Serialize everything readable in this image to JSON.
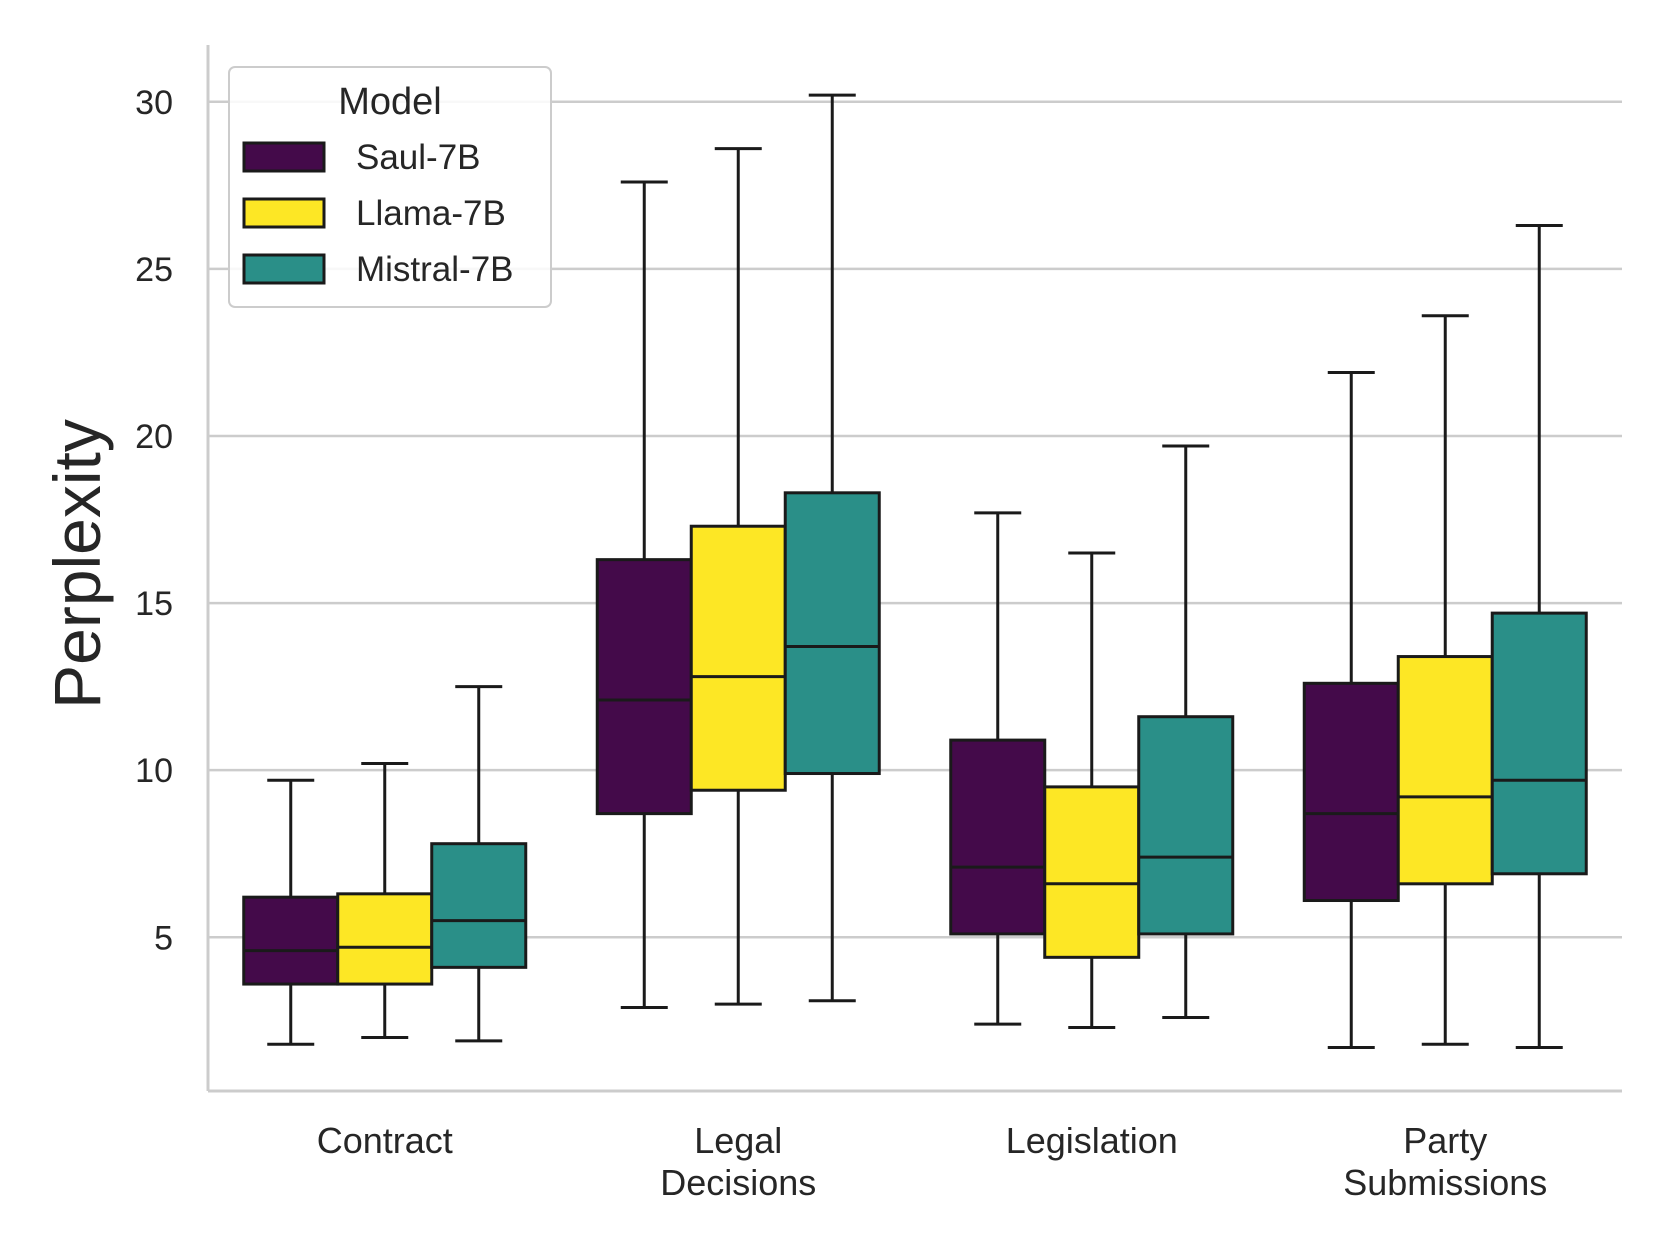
{
  "chart_data": {
    "type": "box",
    "title": "",
    "xlabel": "",
    "ylabel": "Perplexity",
    "ylim": [
      0.4,
      31.7
    ],
    "yticks": [
      5,
      10,
      15,
      20,
      25,
      30
    ],
    "grid": "horizontal",
    "legend": {
      "title": "Model",
      "position": "top-left",
      "entries": [
        {
          "name": "Saul-7B",
          "color": "#440a4a"
        },
        {
          "name": "Llama-7B",
          "color": "#fde725"
        },
        {
          "name": "Mistral-7B",
          "color": "#2a8f88"
        }
      ]
    },
    "categories": [
      {
        "lines": [
          "Contract"
        ]
      },
      {
        "lines": [
          "Legal",
          "Decisions"
        ]
      },
      {
        "lines": [
          "Legislation"
        ]
      },
      {
        "lines": [
          "Party",
          "Submissions"
        ]
      }
    ],
    "series": [
      {
        "name": "Saul-7B",
        "color": "#440a4a",
        "boxes": [
          {
            "whislo": 1.8,
            "q1": 3.6,
            "med": 4.6,
            "q3": 6.2,
            "whishi": 9.7
          },
          {
            "whislo": 2.9,
            "q1": 8.7,
            "med": 12.1,
            "q3": 16.3,
            "whishi": 27.6
          },
          {
            "whislo": 2.4,
            "q1": 5.1,
            "med": 7.1,
            "q3": 10.9,
            "whishi": 17.7
          },
          {
            "whislo": 1.7,
            "q1": 6.1,
            "med": 8.7,
            "q3": 12.6,
            "whishi": 21.9
          }
        ]
      },
      {
        "name": "Llama-7B",
        "color": "#fde725",
        "boxes": [
          {
            "whislo": 2.0,
            "q1": 3.6,
            "med": 4.7,
            "q3": 6.3,
            "whishi": 10.2
          },
          {
            "whislo": 3.0,
            "q1": 9.4,
            "med": 12.8,
            "q3": 17.3,
            "whishi": 28.6
          },
          {
            "whislo": 2.3,
            "q1": 4.4,
            "med": 6.6,
            "q3": 9.5,
            "whishi": 16.5
          },
          {
            "whislo": 1.8,
            "q1": 6.6,
            "med": 9.2,
            "q3": 13.4,
            "whishi": 23.6
          }
        ]
      },
      {
        "name": "Mistral-7B",
        "color": "#2a8f88",
        "boxes": [
          {
            "whislo": 1.9,
            "q1": 4.1,
            "med": 5.5,
            "q3": 7.8,
            "whishi": 12.5
          },
          {
            "whislo": 3.1,
            "q1": 9.9,
            "med": 13.7,
            "q3": 18.3,
            "whishi": 30.2
          },
          {
            "whislo": 2.6,
            "q1": 5.1,
            "med": 7.4,
            "q3": 11.6,
            "whishi": 19.7
          },
          {
            "whislo": 1.7,
            "q1": 6.9,
            "med": 9.7,
            "q3": 14.7,
            "whishi": 26.3
          }
        ]
      }
    ]
  }
}
